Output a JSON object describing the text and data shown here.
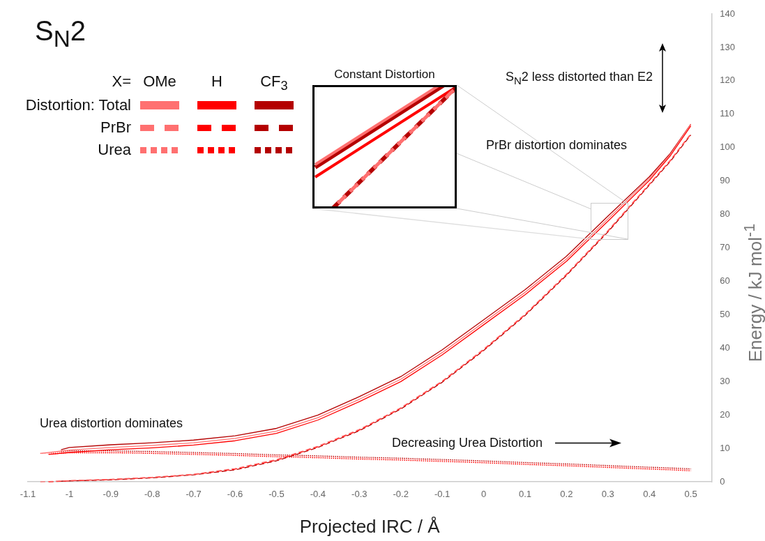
{
  "chart_data": {
    "type": "line",
    "title": "S$_{N}$2",
    "xlabel": "Projected IRC / Å",
    "ylabel": "Energy / kJ mol$^{-1}$",
    "legend_title": "X=",
    "annotations": [
      "OMe",
      "H",
      "CF$_{3}$",
      "Distortion: Total",
      "PrBr",
      "Urea",
      "Constant Distortion",
      "S$_{N}$2 less distorted than E2",
      "PrBr distortion dominates",
      "Urea distortion dominates",
      "Decreasing Urea Distortion"
    ],
    "xlim": [
      -1.1,
      0.55
    ],
    "ylim": [
      0,
      140
    ],
    "xticks": [
      -1.1,
      -1,
      -0.9,
      -0.8,
      -0.7,
      -0.6,
      -0.5,
      -0.4,
      -0.3,
      -0.2,
      -0.1,
      0,
      0.1,
      0.2,
      0.3,
      0.4,
      0.5
    ],
    "yticks": [
      0,
      10,
      20,
      30,
      40,
      50,
      60,
      70,
      80,
      90,
      100,
      110,
      120,
      130,
      140
    ],
    "series": [
      {
        "color": "#ff7070",
        "line_style": "solid",
        "x": [
          -1.07,
          -1,
          -0.9,
          -0.8,
          -0.7,
          -0.6,
          -0.5,
          -0.4,
          -0.3,
          -0.2,
          -0.1,
          0,
          0.1,
          0.2,
          0.3,
          0.4,
          0.45,
          0.5
        ],
        "values": [
          8.5,
          9.5,
          10.3,
          10.9,
          11.7,
          13,
          15.2,
          19.2,
          24.7,
          30.7,
          38.7,
          47.7,
          56.7,
          66.7,
          78.7,
          90.8,
          97.9,
          107
        ]
      },
      {
        "color": "#ff0000",
        "line_style": "solid",
        "x": [
          -1.05,
          -1,
          -0.9,
          -0.8,
          -0.7,
          -0.6,
          -0.5,
          -0.4,
          -0.3,
          -0.2,
          -0.1,
          0,
          0.1,
          0.2,
          0.3,
          0.4,
          0.45,
          0.5
        ],
        "values": [
          8.2,
          8.8,
          9.6,
          10.2,
          11,
          12.3,
          14.5,
          18.5,
          24,
          30,
          38,
          47,
          56,
          66,
          78,
          90.2,
          97.5,
          106.5
        ]
      },
      {
        "color": "#b40000",
        "line_style": "solid",
        "x": [
          -1.02,
          -1,
          -0.9,
          -0.8,
          -0.7,
          -0.6,
          -0.5,
          -0.4,
          -0.3,
          -0.2,
          -0.1,
          0,
          0.1,
          0.2,
          0.3,
          0.4,
          0.45,
          0.5
        ],
        "values": [
          9.6,
          10.3,
          11.1,
          11.7,
          12.5,
          13.8,
          16,
          20,
          25.5,
          31.5,
          39.5,
          48.5,
          57.5,
          67.5,
          79.5,
          91.3,
          98.2,
          107
        ]
      },
      {
        "color": "#ff7070",
        "line_style": "dashed",
        "x": [
          -1.07,
          -1,
          -0.9,
          -0.8,
          -0.7,
          -0.6,
          -0.5,
          -0.4,
          -0.3,
          -0.2,
          -0.1,
          0,
          0.1,
          0.2,
          0.3,
          0.4,
          0.45,
          0.5
        ],
        "values": [
          0,
          0.4,
          0.8,
          1.4,
          2.3,
          4,
          6.7,
          10.7,
          15.7,
          22.2,
          30.2,
          39.7,
          50.2,
          62.2,
          75.2,
          89.2,
          96.2,
          104.2
        ]
      },
      {
        "color": "#ff0000",
        "line_style": "dashed",
        "x": [
          -1.05,
          -1,
          -0.9,
          -0.8,
          -0.7,
          -0.6,
          -0.5,
          -0.4,
          -0.3,
          -0.2,
          -0.1,
          0,
          0.1,
          0.2,
          0.3,
          0.4,
          0.45,
          0.5
        ],
        "values": [
          0,
          0.3,
          0.7,
          1.3,
          2.2,
          3.8,
          6.5,
          10.5,
          15.5,
          22,
          30,
          39.5,
          50,
          62,
          75,
          89,
          96,
          104
        ]
      },
      {
        "color": "#b40000",
        "line_style": "dashed",
        "x": [
          -1.02,
          -1,
          -0.9,
          -0.8,
          -0.7,
          -0.6,
          -0.5,
          -0.4,
          -0.3,
          -0.2,
          -0.1,
          0,
          0.1,
          0.2,
          0.3,
          0.4,
          0.45,
          0.5
        ],
        "values": [
          0.2,
          0.3,
          0.6,
          1.2,
          2.1,
          3.6,
          6.3,
          10.3,
          15.3,
          21.8,
          29.8,
          39.3,
          49.8,
          61.8,
          74.8,
          88.8,
          95.8,
          103.8
        ]
      },
      {
        "color": "#ff7070",
        "line_style": "dotted",
        "x": [
          -1.07,
          -1,
          -0.9,
          -0.8,
          -0.7,
          -0.6,
          -0.5,
          -0.4,
          -0.3,
          -0.2,
          -0.1,
          0,
          0.1,
          0.2,
          0.3,
          0.4,
          0.45,
          0.5
        ],
        "values": [
          8.5,
          9,
          9,
          8.8,
          8.5,
          8.2,
          7.8,
          7.5,
          7.1,
          6.8,
          6.4,
          6,
          5.5,
          5.1,
          4.6,
          4.1,
          3.9,
          3.6
        ]
      },
      {
        "color": "#ff0000",
        "line_style": "dotted",
        "x": [
          -1.05,
          -1,
          -0.9,
          -0.8,
          -0.7,
          -0.6,
          -0.5,
          -0.4,
          -0.3,
          -0.2,
          -0.1,
          0,
          0.1,
          0.2,
          0.3,
          0.4,
          0.45,
          0.5
        ],
        "values": [
          8.3,
          8.7,
          8.7,
          8.5,
          8.2,
          7.9,
          7.5,
          7.2,
          6.8,
          6.5,
          6.1,
          5.7,
          5.2,
          4.8,
          4.3,
          3.8,
          3.6,
          3.3
        ]
      },
      {
        "color": "#b40000",
        "line_style": "dotted",
        "x": [
          -1.02,
          -1,
          -0.9,
          -0.8,
          -0.7,
          -0.6,
          -0.5,
          -0.4,
          -0.3,
          -0.2,
          -0.1,
          0,
          0.1,
          0.2,
          0.3,
          0.4,
          0.45,
          0.5
        ],
        "values": [
          9.1,
          9.3,
          9.3,
          9.1,
          8.8,
          8.5,
          8.1,
          7.8,
          7.4,
          7.1,
          6.7,
          6.3,
          5.8,
          5.4,
          4.9,
          4.4,
          4.2,
          3.9
        ]
      }
    ]
  }
}
